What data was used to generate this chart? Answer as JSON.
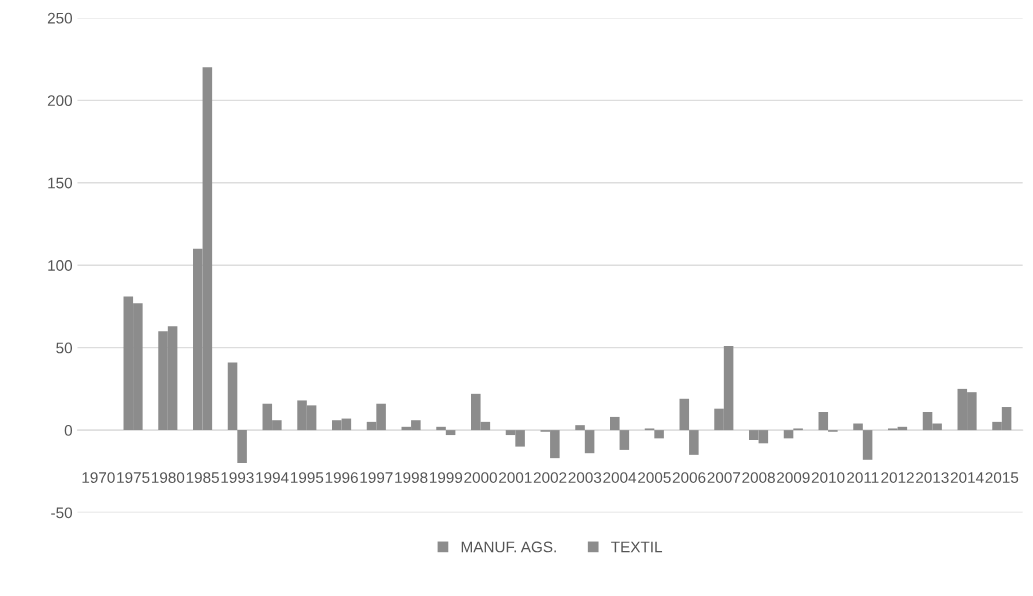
{
  "chart_data": {
    "type": "bar",
    "categories": [
      "1970",
      "1975",
      "1980",
      "1985",
      "1993",
      "1994",
      "1995",
      "1996",
      "1997",
      "1998",
      "1999",
      "2000",
      "2001",
      "2002",
      "2003",
      "2004",
      "2005",
      "2006",
      "2007",
      "2008",
      "2009",
      "2010",
      "2011",
      "2012",
      "2013",
      "2014",
      "2015"
    ],
    "series": [
      {
        "name": "MANUF. AGS.",
        "color": "#8c8c8c",
        "values": [
          0,
          81,
          60,
          110,
          41,
          16,
          18,
          6,
          5,
          2,
          2,
          22,
          -3,
          -1,
          3,
          8,
          1,
          19,
          13,
          -6,
          -5,
          11,
          4,
          1,
          11,
          25,
          5
        ]
      },
      {
        "name": "TEXTIL",
        "color": "#8c8c8c",
        "values": [
          0,
          77,
          63,
          220,
          -20,
          6,
          15,
          7,
          16,
          6,
          -3,
          5,
          -10,
          -17,
          -14,
          -12,
          -5,
          -15,
          51,
          -8,
          1,
          -1,
          -18,
          2,
          4,
          23,
          14
        ]
      }
    ],
    "ylim": [
      -50,
      250
    ],
    "yticks": [
      -50,
      0,
      50,
      100,
      150,
      200,
      250
    ],
    "grid": "y",
    "legend": "bottom"
  }
}
